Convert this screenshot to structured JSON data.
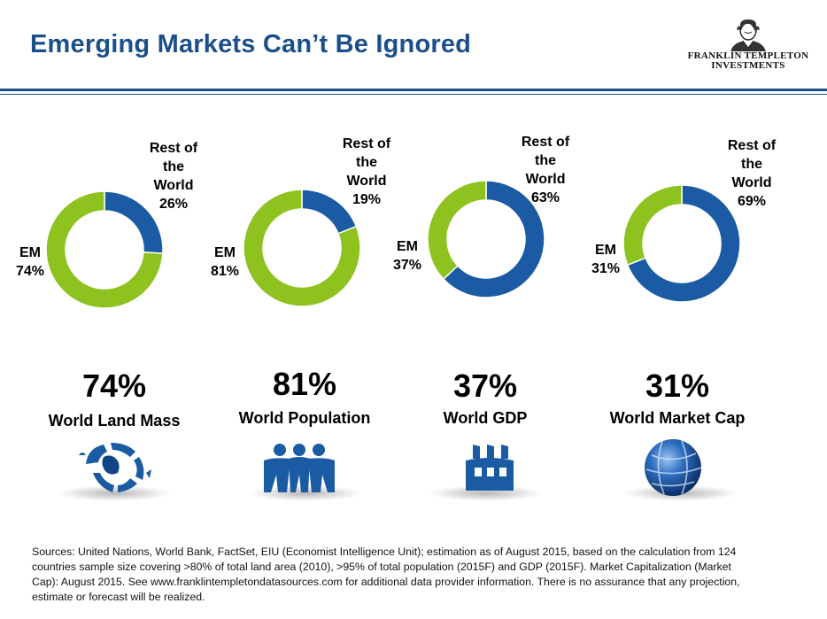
{
  "title": "Emerging Markets Can’t Be Ignored",
  "logo": {
    "line1": "FRANKLIN TEMPLETON",
    "line2": "INVESTMENTS"
  },
  "colors": {
    "em": "#8dc21f",
    "rest": "#1a5ba3",
    "title": "#1a4f8b"
  },
  "chart_data": [
    {
      "type": "pie",
      "labels": [
        "EM",
        "Rest of the World"
      ],
      "values": [
        74,
        26
      ],
      "big_label": "74%",
      "metric": "World Land Mass",
      "icon": "globe-icon"
    },
    {
      "type": "pie",
      "labels": [
        "EM",
        "Rest of the World"
      ],
      "values": [
        81,
        19
      ],
      "big_label": "81%",
      "metric": "World Population",
      "icon": "people-icon"
    },
    {
      "type": "pie",
      "labels": [
        "EM",
        "Rest of the World"
      ],
      "values": [
        37,
        63
      ],
      "big_label": "37%",
      "metric": "World GDP",
      "icon": "factory-icon"
    },
    {
      "type": "pie",
      "labels": [
        "EM",
        "Rest of the World"
      ],
      "values": [
        31,
        69
      ],
      "big_label": "31%",
      "metric": "World Market Cap",
      "icon": "globe-sphere-icon"
    }
  ],
  "label_text": {
    "em": "EM",
    "rest_line1": "Rest of",
    "rest_line2": "the",
    "rest_line3": "World"
  },
  "pct_text": {
    "em": [
      "74%",
      "81%",
      "37%",
      "31%"
    ],
    "rest": [
      "26%",
      "19%",
      "63%",
      "69%"
    ]
  },
  "sources": "Sources: United Nations, World Bank, FactSet, EIU (Economist Intelligence Unit); estimation as of August 2015, based on the calculation from 124 countries sample size covering >80% of total land area (2010), >95% of total population (2015F) and GDP (2015F). Market Capitalization (Market Cap): August 2015. See www.franklintempletondatasources.com for additional data provider information. There is no assurance that any projection, estimate or forecast will be realized."
}
